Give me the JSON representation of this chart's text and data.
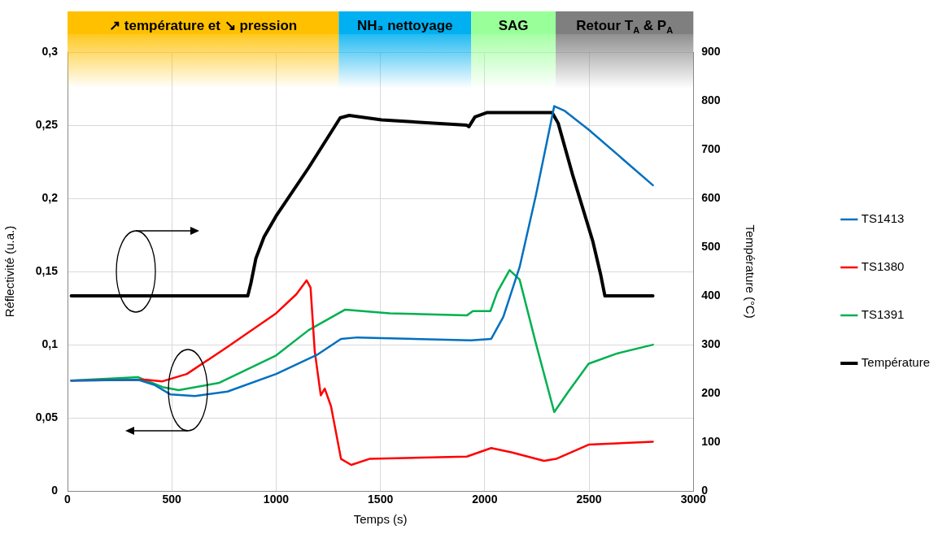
{
  "chart_data": {
    "type": "line",
    "xlabel": "Temps (s)",
    "ylabel": "Réflectivité (u.a.)",
    "y2label": "Température (°C)",
    "xlim": [
      0,
      3000
    ],
    "xticks": [
      0,
      500,
      1000,
      1500,
      2000,
      2500,
      3000
    ],
    "ylim": [
      0,
      0.3
    ],
    "yticks": [
      {
        "value": 0,
        "label": "0"
      },
      {
        "value": 0.05,
        "label": "0,05"
      },
      {
        "value": 0.1,
        "label": "0,1"
      },
      {
        "value": 0.15,
        "label": "0,15"
      },
      {
        "value": 0.2,
        "label": "0,2"
      },
      {
        "value": 0.25,
        "label": "0,25"
      },
      {
        "value": 0.3,
        "label": "0,3"
      }
    ],
    "y2lim": [
      0,
      900
    ],
    "y2ticks": [
      0,
      100,
      200,
      300,
      400,
      500,
      600,
      700,
      800,
      900
    ],
    "grid": true,
    "legend": "right",
    "marker": "none",
    "line_style": "solid",
    "bands": [
      {
        "axis": "x",
        "from": 0,
        "to": 1300,
        "label": "↗ température et ↘ pression",
        "color": "#ffc000"
      },
      {
        "axis": "x",
        "from": 1300,
        "to": 1935,
        "label": "NH₃ nettoyage",
        "color": "#00b0f0"
      },
      {
        "axis": "x",
        "from": 1935,
        "to": 2340,
        "label": "SAG",
        "color": "#99ff99"
      },
      {
        "axis": "x",
        "from": 2340,
        "to": 3000,
        "label": "Retour T$_{A}$ & P$_{A}$",
        "color": "#7f7f7f"
      }
    ],
    "series": [
      {
        "name": "TS1413",
        "color": "#0070c0",
        "x": [
          18,
          339,
          416,
          494,
          611,
          767,
          1000,
          1195,
          1311,
          1389,
          1934,
          2031,
          2089,
          2167,
          2245,
          2333,
          2381,
          2498,
          2806
        ],
        "values": [
          0.0755,
          0.076,
          0.0726,
          0.066,
          0.065,
          0.068,
          0.08,
          0.093,
          0.104,
          0.105,
          0.103,
          0.104,
          0.119,
          0.153,
          0.202,
          0.263,
          0.26,
          0.247,
          0.209
        ]
      },
      {
        "name": "TS1380",
        "color": "#ff0000",
        "x": [
          18,
          377,
          455,
          572,
          767,
          1000,
          1097,
          1146,
          1165,
          1185,
          1214,
          1233,
          1263,
          1311,
          1360,
          1447,
          1914,
          2031,
          2128,
          2284,
          2342,
          2498,
          2806
        ],
        "values": [
          0.0755,
          0.076,
          0.075,
          0.08,
          0.0985,
          0.1215,
          0.1345,
          0.144,
          0.139,
          0.0956,
          0.0654,
          0.07,
          0.058,
          0.022,
          0.0179,
          0.022,
          0.0236,
          0.0294,
          0.0265,
          0.0207,
          0.022,
          0.0317,
          0.0337
        ]
      },
      {
        "name": "TS1391",
        "color": "#00b050",
        "x": [
          18,
          339,
          455,
          533,
          728,
          1000,
          1156,
          1331,
          1545,
          1914,
          1943,
          2027,
          2060,
          2119,
          2167,
          2245,
          2333,
          2401,
          2498,
          2634,
          2806
        ],
        "values": [
          0.0755,
          0.0778,
          0.0711,
          0.069,
          0.074,
          0.0927,
          0.11,
          0.124,
          0.1215,
          0.12,
          0.123,
          0.123,
          0.136,
          0.151,
          0.1446,
          0.101,
          0.054,
          0.068,
          0.087,
          0.094,
          0.1
        ]
      },
      {
        "name": "Température",
        "color": "#000000",
        "axis": "y2",
        "x": [
          18,
          864,
          879,
          903,
          942,
          1000,
          1156,
          1307,
          1350,
          1506,
          1914,
          1924,
          1953,
          2012,
          2323,
          2352,
          2420,
          2518,
          2556,
          2576,
          2806
        ],
        "values": [
          400,
          400,
          426,
          477,
          521,
          564,
          663,
          765,
          770,
          761,
          750,
          747,
          767,
          776,
          776,
          754,
          650,
          512,
          443,
          400,
          400
        ]
      }
    ]
  }
}
